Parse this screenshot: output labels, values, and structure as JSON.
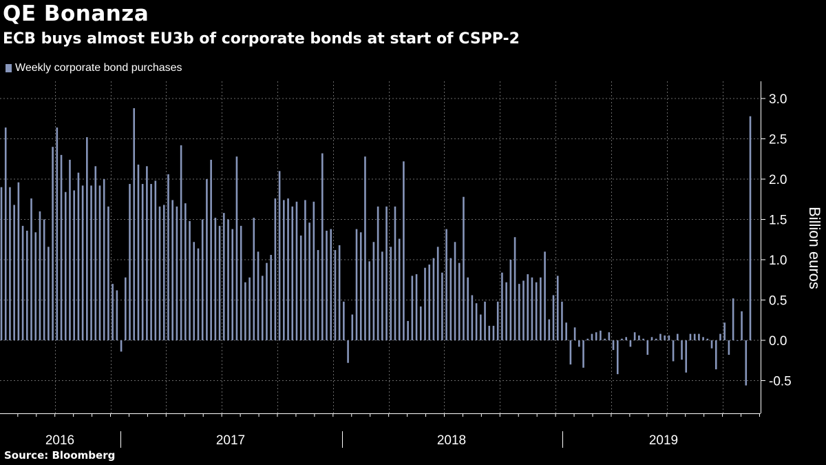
{
  "title": "QE Bonanza",
  "subtitle": "ECB buys almost EU3b of corporate bonds at start of CSPP-2",
  "source": "Source:  Bloomberg",
  "colors": {
    "background": "#000000",
    "bar": "#8796bb",
    "grid": "#6b6b6b",
    "text": "#ffffff"
  },
  "chart_data": {
    "type": "bar",
    "legend": "Weekly corporate bond purchases",
    "legend_position": "top-left",
    "ylabel": "Billion euros",
    "ylim": [
      -0.85,
      3.2
    ],
    "yticks": [
      3.0,
      2.5,
      2.0,
      1.5,
      1.0,
      0.5,
      0.0,
      -0.5
    ],
    "ytick_labels": [
      "3.0",
      "2.5",
      "2.0",
      "1.5",
      "1.0",
      "0.5",
      "0.0",
      "-0.5"
    ],
    "grid": true,
    "years": [
      "2016",
      "2017",
      "2018",
      "2019"
    ],
    "series": [
      {
        "name": "Weekly corporate bond purchases",
        "values": [
          1.9,
          2.64,
          1.9,
          1.68,
          1.96,
          1.42,
          1.36,
          1.76,
          1.34,
          1.6,
          1.5,
          1.16,
          2.4,
          2.64,
          2.3,
          1.84,
          2.24,
          1.86,
          2.08,
          1.92,
          2.52,
          1.92,
          2.16,
          1.92,
          2.0,
          1.66,
          0.7,
          0.62,
          -0.14,
          0.78,
          1.94,
          2.88,
          2.18,
          1.94,
          2.16,
          1.94,
          1.98,
          1.66,
          1.68,
          2.06,
          1.74,
          1.66,
          2.42,
          1.7,
          1.48,
          1.22,
          1.14,
          1.5,
          2.0,
          2.24,
          1.52,
          1.42,
          1.58,
          1.5,
          1.38,
          2.28,
          1.42,
          0.72,
          0.78,
          1.52,
          1.1,
          0.8,
          0.96,
          1.06,
          1.76,
          2.1,
          1.74,
          1.76,
          1.66,
          1.72,
          1.3,
          1.74,
          1.46,
          1.72,
          1.12,
          2.32,
          1.36,
          1.38,
          1.12,
          1.18,
          0.48,
          -0.28,
          0.32,
          1.38,
          1.34,
          2.28,
          0.98,
          1.22,
          1.66,
          1.1,
          1.66,
          1.16,
          1.66,
          1.26,
          2.22,
          0.24,
          0.8,
          0.82,
          0.42,
          0.9,
          0.94,
          1.02,
          1.16,
          0.84,
          1.38,
          1.02,
          1.22,
          0.96,
          1.78,
          0.78,
          0.56,
          0.46,
          0.32,
          0.48,
          0.18,
          0.18,
          0.48,
          0.84,
          0.72,
          1.0,
          1.28,
          0.7,
          0.74,
          0.82,
          0.78,
          0.72,
          0.78,
          1.1,
          0.26,
          0.56,
          0.8,
          0.48,
          0.22,
          -0.3,
          0.16,
          -0.08,
          -0.34,
          0.02,
          0.08,
          0.1,
          0.12,
          0.02,
          0.1,
          -0.12,
          -0.42,
          0.02,
          0.04,
          -0.08,
          0.1,
          0.06,
          0.02,
          -0.18,
          0.04,
          0.02,
          0.08,
          0.06,
          0.06,
          -0.26,
          0.08,
          -0.24,
          -0.4,
          0.08,
          0.08,
          0.08,
          0.04,
          0.02,
          -0.1,
          -0.36,
          0.08,
          0.22,
          -0.18,
          0.52,
          0.0,
          0.36,
          -0.56,
          2.78
        ]
      }
    ]
  }
}
